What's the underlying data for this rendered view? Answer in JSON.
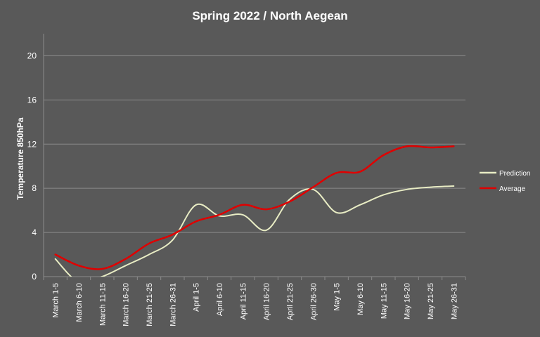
{
  "chart_data": {
    "type": "line",
    "title": "Spring 2022 / North Aegean",
    "ylabel": "Temperature 850hPa",
    "xlabel": "",
    "ylim": [
      0,
      22
    ],
    "yticks": [
      0,
      4,
      8,
      12,
      16,
      20
    ],
    "grid": true,
    "legend_position": "right",
    "categories": [
      "March 1-5",
      "March 6-10",
      "March 11-15",
      "March 16-20",
      "March 21-25",
      "March 26-31",
      "April 1-5",
      "April 6-10",
      "April 11-15",
      "April 16-20",
      "April 21-25",
      "April 26-30",
      "May 1-5",
      "May 6-10",
      "May 11-15",
      "May 16-20",
      "May 21-25",
      "May 26-31"
    ],
    "series": [
      {
        "name": "Prediction",
        "color": "#e8ecc4",
        "values": [
          1.6,
          -0.5,
          0.0,
          1.0,
          2.0,
          3.3,
          6.5,
          5.5,
          5.6,
          4.2,
          7.0,
          7.9,
          5.8,
          6.5,
          7.4,
          7.9,
          8.1,
          8.2
        ]
      },
      {
        "name": "Average",
        "color": "#e00000",
        "values": [
          2.0,
          1.0,
          0.7,
          1.6,
          3.0,
          3.8,
          5.0,
          5.6,
          6.5,
          6.1,
          6.8,
          8.1,
          9.4,
          9.5,
          11.0,
          11.8,
          11.7,
          11.8
        ]
      }
    ]
  }
}
